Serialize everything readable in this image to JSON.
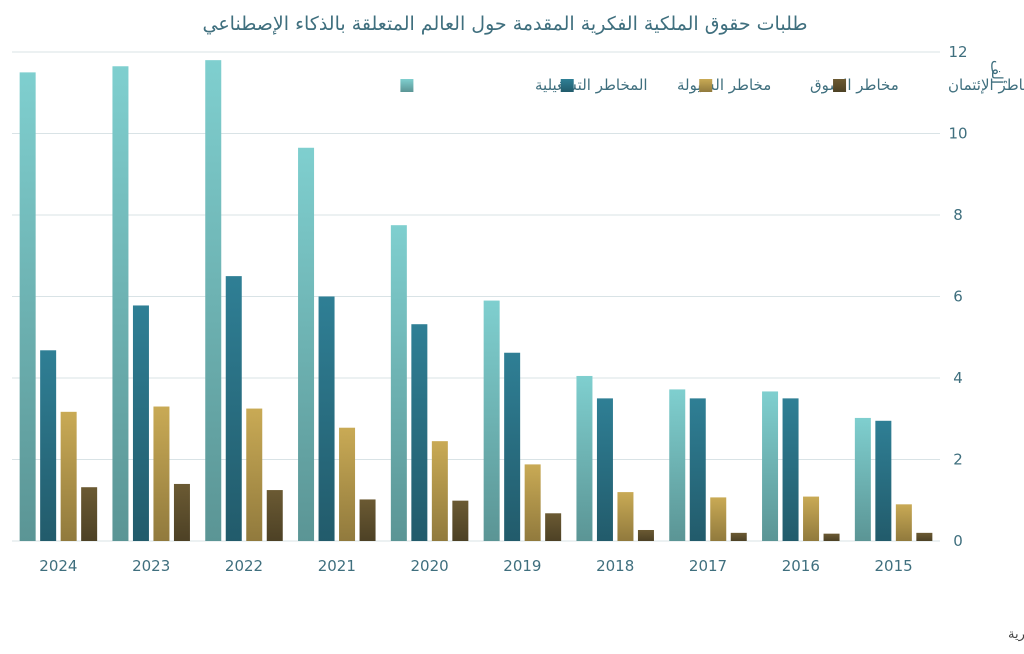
{
  "chart_data": {
    "type": "bar",
    "title": "طلبات حقوق الملكية الفكرية المقدمة حول العالم المتعلقة بالذكاء الإصطناعي",
    "ylabel": "ألف",
    "source": "المصدر : المنظمة الدولية لحقوق الملكية الفكرية",
    "categories": [
      "2024",
      "2023",
      "2022",
      "2021",
      "2020",
      "2019",
      "2018",
      "2017",
      "2016",
      "2015"
    ],
    "ylim": [
      0,
      12
    ],
    "yticks": [
      "0",
      "2",
      "4",
      "6",
      "8",
      "10",
      "12"
    ],
    "grid": true,
    "legend_position": "top",
    "series": [
      {
        "name": "المخاطر التشغيلية",
        "color": "#7fcfcf",
        "values": [
          11.5,
          11.65,
          11.8,
          9.65,
          7.75,
          5.9,
          4.05,
          3.72,
          3.67,
          3.02
        ]
      },
      {
        "name": "مخاطر السيولة",
        "color": "#2f7f95",
        "values": [
          4.68,
          5.78,
          6.5,
          6.0,
          5.32,
          4.62,
          3.5,
          3.5,
          3.5,
          2.95
        ]
      },
      {
        "name": "مخاطر السوق",
        "color": "#c9aa55",
        "values": [
          3.17,
          3.3,
          3.25,
          2.78,
          2.45,
          1.88,
          1.2,
          1.07,
          1.09,
          0.9
        ]
      },
      {
        "name": "مخاطر الإئتمان",
        "color": "#6b5a33",
        "values": [
          1.32,
          1.4,
          1.25,
          1.02,
          0.99,
          0.68,
          0.27,
          0.2,
          0.18,
          0.2
        ]
      }
    ]
  }
}
